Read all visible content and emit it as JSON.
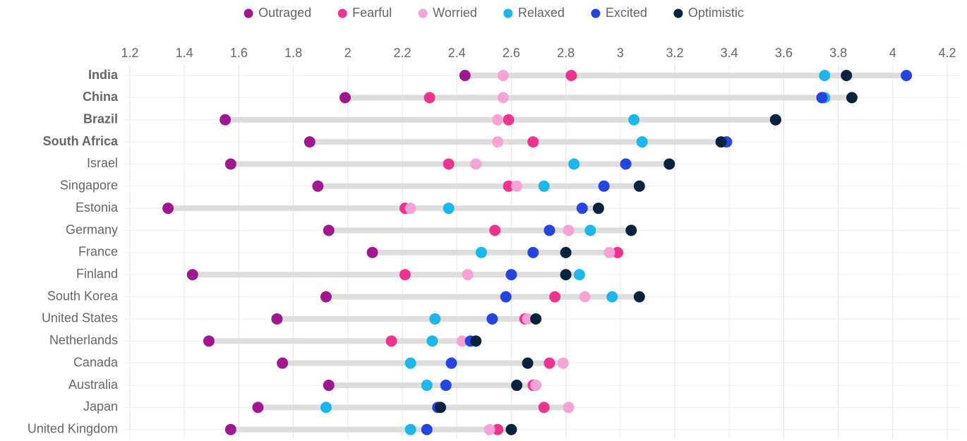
{
  "chart_data": {
    "type": "dot",
    "categories": [
      "India",
      "China",
      "Brazil",
      "South Africa",
      "Israel",
      "Singapore",
      "Estonia",
      "Germany",
      "France",
      "Finland",
      "South Korea",
      "United States",
      "Netherlands",
      "Canada",
      "Australia",
      "Japan",
      "United Kingdom"
    ],
    "highlighted": [
      true,
      true,
      true,
      true,
      false,
      false,
      false,
      false,
      false,
      false,
      false,
      false,
      false,
      false,
      false,
      false,
      false
    ],
    "series": [
      {
        "name": "Outraged",
        "color": "#a0178f",
        "values": [
          2.43,
          1.99,
          1.55,
          1.86,
          1.57,
          1.89,
          1.34,
          1.93,
          2.09,
          1.43,
          1.92,
          1.74,
          1.49,
          1.76,
          1.93,
          1.67,
          1.57
        ]
      },
      {
        "name": "Fearful",
        "color": "#f0338f",
        "values": [
          2.82,
          2.3,
          2.59,
          2.68,
          2.37,
          2.59,
          2.21,
          2.54,
          2.99,
          2.21,
          2.76,
          2.65,
          2.16,
          2.74,
          2.68,
          2.72,
          2.55
        ]
      },
      {
        "name": "Worried",
        "color": "#f7a3d6",
        "values": [
          2.57,
          2.57,
          2.55,
          2.55,
          2.47,
          2.62,
          2.23,
          2.81,
          2.96,
          2.44,
          2.87,
          2.66,
          2.42,
          2.79,
          2.69,
          2.81,
          2.52
        ]
      },
      {
        "name": "Relaxed",
        "color": "#1bb6ea",
        "values": [
          3.75,
          3.75,
          3.05,
          3.08,
          2.83,
          2.72,
          2.37,
          2.89,
          2.49,
          2.85,
          2.97,
          2.32,
          2.31,
          2.23,
          2.29,
          1.92,
          2.23
        ]
      },
      {
        "name": "Excited",
        "color": "#2544e0",
        "values": [
          4.05,
          3.74,
          3.57,
          3.39,
          3.02,
          2.94,
          2.86,
          2.74,
          2.68,
          2.6,
          2.58,
          2.53,
          2.45,
          2.38,
          2.36,
          2.33,
          2.29
        ]
      },
      {
        "name": "Optimistic",
        "color": "#0c2340",
        "values": [
          3.83,
          3.85,
          3.57,
          3.37,
          3.18,
          3.07,
          2.92,
          3.04,
          2.8,
          2.8,
          3.07,
          2.69,
          2.47,
          2.66,
          2.62,
          2.34,
          2.6
        ]
      }
    ],
    "xlim": [
      1.2,
      4.2
    ],
    "xticks": [
      1.2,
      1.4,
      1.6,
      1.8,
      2,
      2.2,
      2.4,
      2.6,
      2.8,
      3,
      3.2,
      3.4,
      3.6,
      3.8,
      4,
      4.2
    ],
    "grid": true
  }
}
